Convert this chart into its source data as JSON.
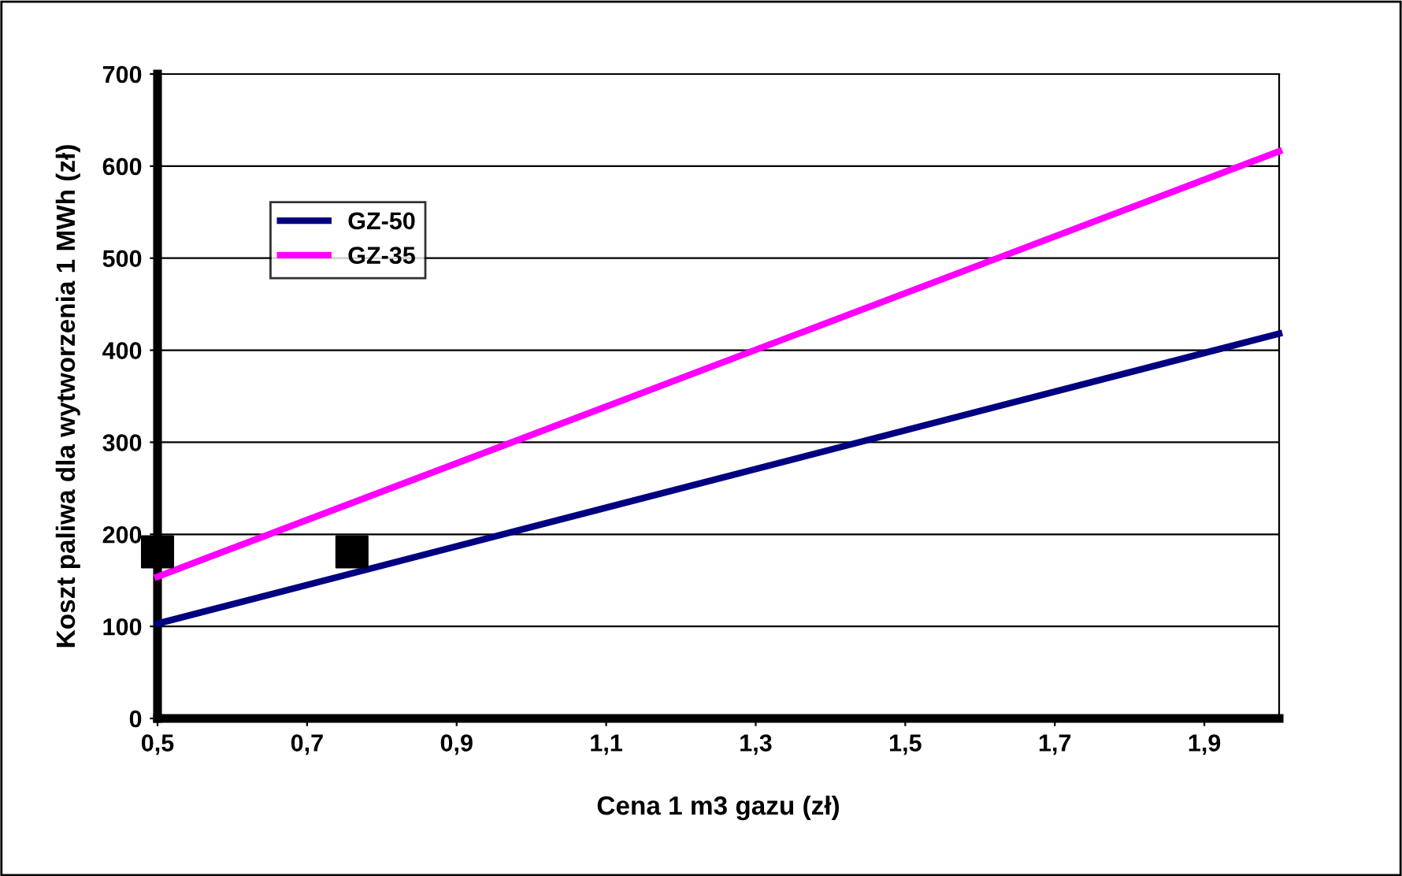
{
  "chart_data": {
    "type": "line",
    "xlabel": "Cena 1 m3 gazu (zł)",
    "ylabel": "Koszt paliwa dla wytworzenia 1 MWh (zł)",
    "xlim": [
      0.5,
      2.0
    ],
    "ylim": [
      0,
      700
    ],
    "xticks": [
      {
        "value": 0.5,
        "label": "0,5"
      },
      {
        "value": 0.7,
        "label": "0,7"
      },
      {
        "value": 0.9,
        "label": "0,9"
      },
      {
        "value": 1.1,
        "label": "1,1"
      },
      {
        "value": 1.3,
        "label": "1,3"
      },
      {
        "value": 1.5,
        "label": "1,5"
      },
      {
        "value": 1.7,
        "label": "1,7"
      },
      {
        "value": 1.9,
        "label": "1,9"
      }
    ],
    "yticks": [
      0,
      100,
      200,
      300,
      400,
      500,
      600,
      700
    ],
    "grid": "y",
    "legend": "top left",
    "series": [
      {
        "name": "GZ-50",
        "color": "#000080",
        "x": [
          0.5,
          2.0
        ],
        "values": [
          103,
          418
        ],
        "marker": "none"
      },
      {
        "name": "GZ-35",
        "color": "#ff00ff",
        "x": [
          0.5,
          2.0
        ],
        "values": [
          154,
          616
        ],
        "marker": "none"
      },
      {
        "type": "scatter",
        "color": "#000000",
        "x": [
          0.5,
          0.76
        ],
        "values": [
          181,
          181
        ],
        "marker": "square"
      }
    ]
  }
}
